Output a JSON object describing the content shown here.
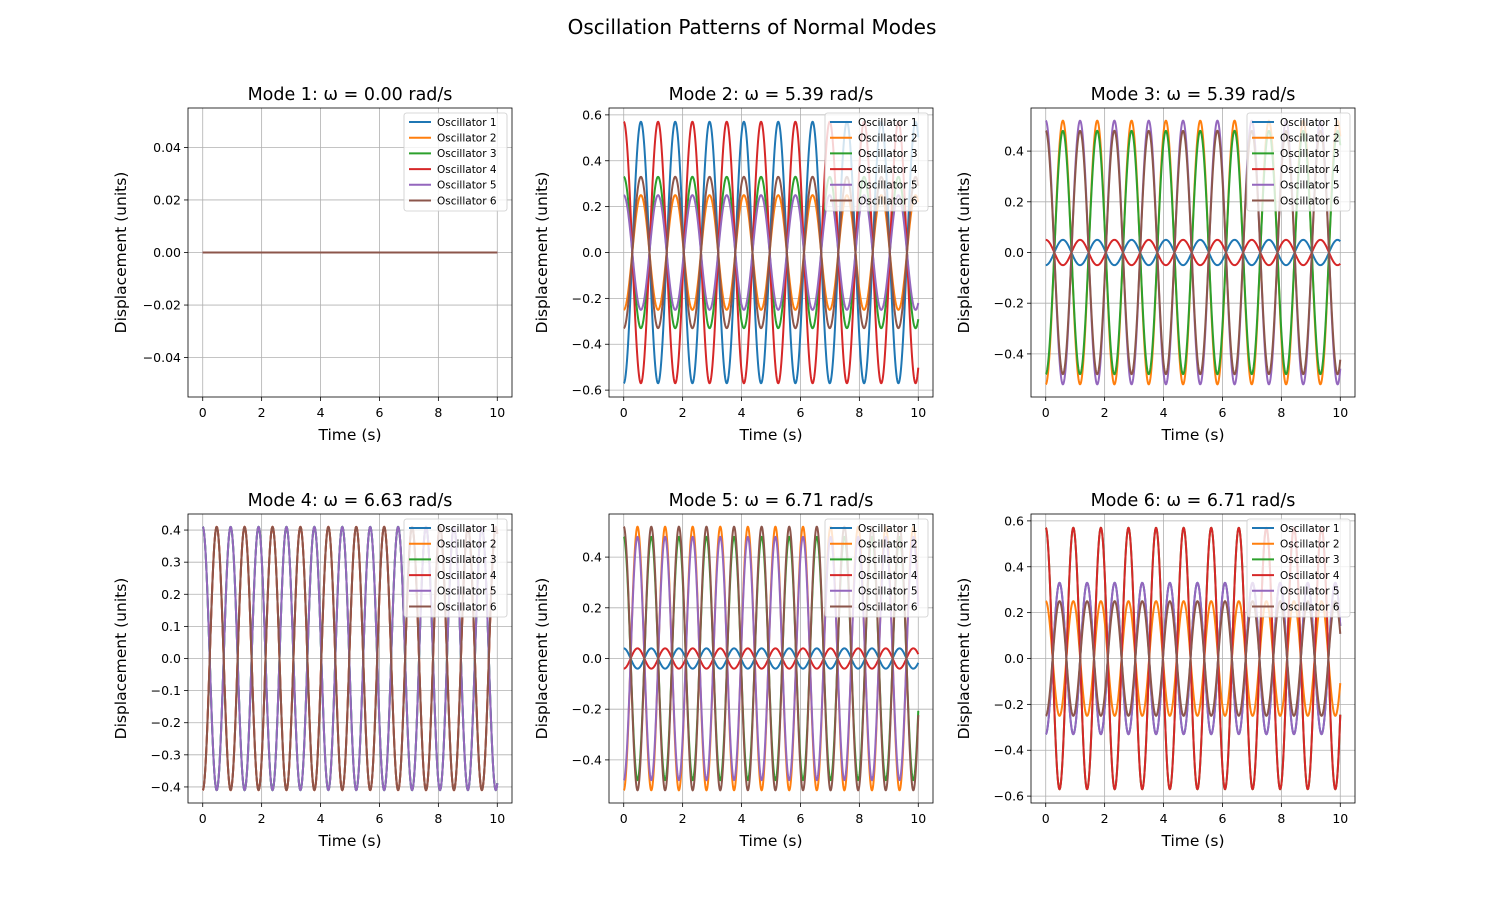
{
  "figure": {
    "title": "Oscillation Patterns of Normal Modes"
  },
  "chart_data": [
    {
      "type": "line",
      "title": "Mode 1: ω = 0.00 rad/s",
      "xlabel": "Time (s)",
      "ylabel": "Displacement (units)",
      "omega": 0.0,
      "xlim": [
        -0.5,
        10.5
      ],
      "ylim": [
        -0.055,
        0.055
      ],
      "xticks": [
        0,
        2,
        4,
        6,
        8,
        10
      ],
      "yticks": [
        -0.04,
        -0.02,
        0.0,
        0.02,
        0.04
      ],
      "ytick_decimals": 2,
      "grid": true,
      "legend": "top-right",
      "series": [
        {
          "name": "Oscillator 1",
          "color": "#1f77b4",
          "amplitude": 0.0
        },
        {
          "name": "Oscillator 2",
          "color": "#ff7f0e",
          "amplitude": 0.0
        },
        {
          "name": "Oscillator 3",
          "color": "#2ca02c",
          "amplitude": 0.0
        },
        {
          "name": "Oscillator 4",
          "color": "#d62728",
          "amplitude": 0.0
        },
        {
          "name": "Oscillator 5",
          "color": "#9467bd",
          "amplitude": 0.0
        },
        {
          "name": "Oscillator 6",
          "color": "#8c564b",
          "amplitude": 0.0
        }
      ]
    },
    {
      "type": "line",
      "title": "Mode 2: ω = 5.39 rad/s",
      "xlabel": "Time (s)",
      "ylabel": "Displacement (units)",
      "omega": 5.39,
      "xlim": [
        -0.5,
        10.5
      ],
      "ylim": [
        -0.63,
        0.63
      ],
      "xticks": [
        0,
        2,
        4,
        6,
        8,
        10
      ],
      "yticks": [
        -0.6,
        -0.4,
        -0.2,
        0.0,
        0.2,
        0.4,
        0.6
      ],
      "ytick_decimals": 1,
      "grid": true,
      "legend": "top-right",
      "series": [
        {
          "name": "Oscillator 1",
          "color": "#1f77b4",
          "amplitude": -0.57
        },
        {
          "name": "Oscillator 2",
          "color": "#ff7f0e",
          "amplitude": -0.25
        },
        {
          "name": "Oscillator 3",
          "color": "#2ca02c",
          "amplitude": 0.33
        },
        {
          "name": "Oscillator 4",
          "color": "#d62728",
          "amplitude": 0.57
        },
        {
          "name": "Oscillator 5",
          "color": "#9467bd",
          "amplitude": 0.25
        },
        {
          "name": "Oscillator 6",
          "color": "#8c564b",
          "amplitude": -0.33
        }
      ]
    },
    {
      "type": "line",
      "title": "Mode 3: ω = 5.39 rad/s",
      "xlabel": "Time (s)",
      "ylabel": "Displacement (units)",
      "omega": 5.39,
      "xlim": [
        -0.5,
        10.5
      ],
      "ylim": [
        -0.57,
        0.57
      ],
      "xticks": [
        0,
        2,
        4,
        6,
        8,
        10
      ],
      "yticks": [
        -0.4,
        -0.2,
        0.0,
        0.2,
        0.4
      ],
      "ytick_decimals": 1,
      "grid": true,
      "legend": "top-right",
      "series": [
        {
          "name": "Oscillator 1",
          "color": "#1f77b4",
          "amplitude": -0.05
        },
        {
          "name": "Oscillator 2",
          "color": "#ff7f0e",
          "amplitude": -0.52
        },
        {
          "name": "Oscillator 3",
          "color": "#2ca02c",
          "amplitude": -0.48
        },
        {
          "name": "Oscillator 4",
          "color": "#d62728",
          "amplitude": 0.05
        },
        {
          "name": "Oscillator 5",
          "color": "#9467bd",
          "amplitude": 0.52
        },
        {
          "name": "Oscillator 6",
          "color": "#8c564b",
          "amplitude": 0.48
        }
      ]
    },
    {
      "type": "line",
      "title": "Mode 4: ω = 6.63 rad/s",
      "xlabel": "Time (s)",
      "ylabel": "Displacement (units)",
      "omega": 6.63,
      "xlim": [
        -0.5,
        10.5
      ],
      "ylim": [
        -0.45,
        0.45
      ],
      "xticks": [
        0,
        2,
        4,
        6,
        8,
        10
      ],
      "yticks": [
        -0.4,
        -0.3,
        -0.2,
        -0.1,
        0.0,
        0.1,
        0.2,
        0.3,
        0.4
      ],
      "ytick_decimals": 1,
      "grid": true,
      "legend": "top-right",
      "series": [
        {
          "name": "Oscillator 1",
          "color": "#1f77b4",
          "amplitude": 0.41
        },
        {
          "name": "Oscillator 2",
          "color": "#ff7f0e",
          "amplitude": -0.41
        },
        {
          "name": "Oscillator 3",
          "color": "#2ca02c",
          "amplitude": 0.41
        },
        {
          "name": "Oscillator 4",
          "color": "#d62728",
          "amplitude": -0.41
        },
        {
          "name": "Oscillator 5",
          "color": "#9467bd",
          "amplitude": 0.41
        },
        {
          "name": "Oscillator 6",
          "color": "#8c564b",
          "amplitude": -0.41
        }
      ]
    },
    {
      "type": "line",
      "title": "Mode 5: ω = 6.71 rad/s",
      "xlabel": "Time (s)",
      "ylabel": "Displacement (units)",
      "omega": 6.71,
      "xlim": [
        -0.5,
        10.5
      ],
      "ylim": [
        -0.57,
        0.57
      ],
      "xticks": [
        0,
        2,
        4,
        6,
        8,
        10
      ],
      "yticks": [
        -0.4,
        -0.2,
        0.0,
        0.2,
        0.4
      ],
      "ytick_decimals": 1,
      "grid": true,
      "legend": "top-right",
      "series": [
        {
          "name": "Oscillator 1",
          "color": "#1f77b4",
          "amplitude": 0.04
        },
        {
          "name": "Oscillator 2",
          "color": "#ff7f0e",
          "amplitude": -0.52
        },
        {
          "name": "Oscillator 3",
          "color": "#2ca02c",
          "amplitude": 0.48
        },
        {
          "name": "Oscillator 4",
          "color": "#d62728",
          "amplitude": -0.04
        },
        {
          "name": "Oscillator 5",
          "color": "#9467bd",
          "amplitude": -0.48
        },
        {
          "name": "Oscillator 6",
          "color": "#8c564b",
          "amplitude": 0.52
        }
      ]
    },
    {
      "type": "line",
      "title": "Mode 6: ω = 6.71 rad/s",
      "xlabel": "Time (s)",
      "ylabel": "Displacement (units)",
      "omega": 6.71,
      "xlim": [
        -0.5,
        10.5
      ],
      "ylim": [
        -0.63,
        0.63
      ],
      "xticks": [
        0,
        2,
        4,
        6,
        8,
        10
      ],
      "yticks": [
        -0.6,
        -0.4,
        -0.2,
        0.0,
        0.2,
        0.4,
        0.6
      ],
      "ytick_decimals": 1,
      "grid": true,
      "legend": "top-right",
      "series": [
        {
          "name": "Oscillator 1",
          "color": "#1f77b4",
          "amplitude": -0.33
        },
        {
          "name": "Oscillator 2",
          "color": "#ff7f0e",
          "amplitude": 0.25
        },
        {
          "name": "Oscillator 3",
          "color": "#2ca02c",
          "amplitude": 0.57
        },
        {
          "name": "Oscillator 4",
          "color": "#d62728",
          "amplitude": 0.57
        },
        {
          "name": "Oscillator 5",
          "color": "#9467bd",
          "amplitude": -0.33
        },
        {
          "name": "Oscillator 6",
          "color": "#8c564b",
          "amplitude": -0.25
        }
      ]
    }
  ]
}
